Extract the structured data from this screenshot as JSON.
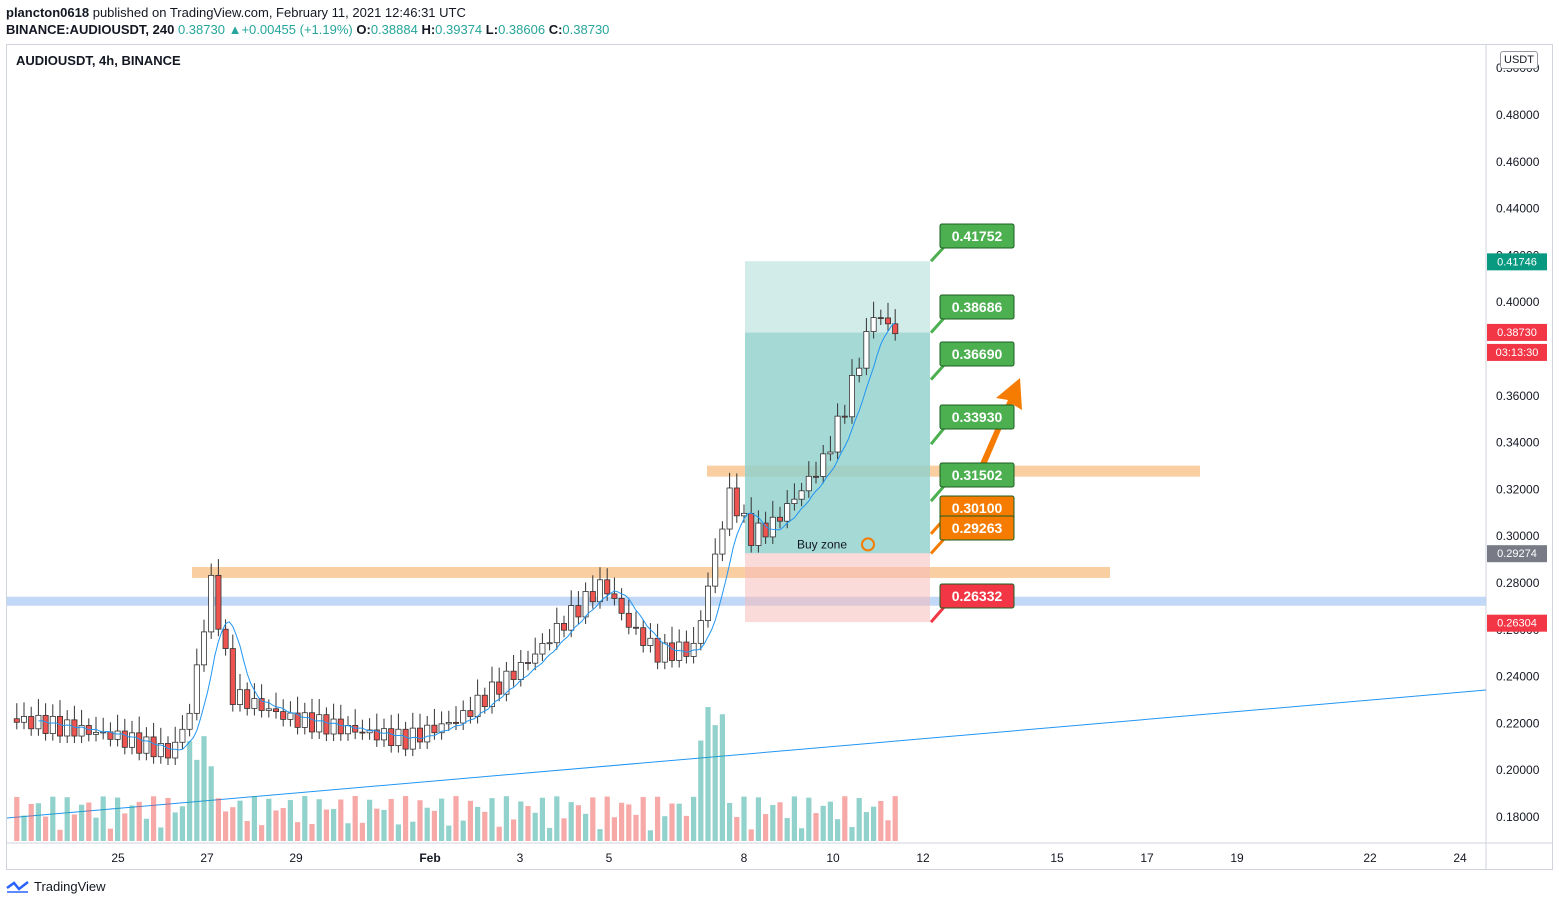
{
  "header": {
    "author": "plancton0618",
    "published_text": "published on TradingView.com, February 11, 2021 12:46:31 UTC",
    "symbol": "BINANCE:AUDIOUSDT, 240",
    "last": "0.38730",
    "change_arrow": "▲",
    "change": "+0.00455 (+1.19%)",
    "o_label": "O:",
    "o": "0.38884",
    "h_label": "H:",
    "h": "0.39374",
    "l_label": "L:",
    "l": "0.38606",
    "c_label": "C:",
    "c": "0.38730"
  },
  "chart_title": "AUDIOUSDT, 4h, BINANCE",
  "currency": "USDT",
  "footer": {
    "brand": "TradingView",
    "logo_icon": "tradingview-logo-icon"
  },
  "chart_data": {
    "type": "candlestick",
    "y_axis": {
      "ticks": [
        "0.18000",
        "0.20000",
        "0.22000",
        "0.24000",
        "0.26000",
        "0.28000",
        "0.30000",
        "0.32000",
        "0.34000",
        "0.36000",
        "0.38000",
        "0.40000",
        "0.42000",
        "0.44000",
        "0.46000",
        "0.48000",
        "0.50000"
      ],
      "range": [
        0.17,
        0.505
      ]
    },
    "x_axis": {
      "ticks": [
        "25",
        "27",
        "29",
        "Feb",
        "3",
        "5",
        "8",
        "10",
        "12",
        "15",
        "17",
        "19",
        "22",
        "24"
      ]
    },
    "price_labels": [
      {
        "value": "0.41746",
        "color": "#089981"
      },
      {
        "value": "0.38730",
        "color": "#f23645"
      },
      {
        "value": "03:13:30",
        "color": "#f23645"
      },
      {
        "value": "0.29274",
        "color": "#787b86"
      },
      {
        "value": "0.26304",
        "color": "#f23645"
      }
    ],
    "callouts": [
      {
        "value": "0.41752",
        "color": "#4caf50"
      },
      {
        "value": "0.38686",
        "color": "#4caf50"
      },
      {
        "value": "0.36690",
        "color": "#4caf50"
      },
      {
        "value": "0.33930",
        "color": "#4caf50"
      },
      {
        "value": "0.31502",
        "color": "#4caf50"
      },
      {
        "value": "0.30100",
        "color": "#f57c00"
      },
      {
        "value": "0.29263",
        "color": "#f57c00"
      },
      {
        "value": "0.26332",
        "color": "#f23645"
      }
    ],
    "position": {
      "entry": 0.2927,
      "target": 0.4175,
      "stop": 0.2633
    },
    "buy_zone_label": "Buy zone",
    "support_zones": [
      {
        "price": 0.2845,
        "color": "#f7c28a"
      },
      {
        "price": 0.3278,
        "color": "#f7c28a"
      },
      {
        "price": 0.2722,
        "color": "#b3cef5"
      }
    ],
    "up_color": "#26a69a",
    "down_color": "#ef5350"
  }
}
